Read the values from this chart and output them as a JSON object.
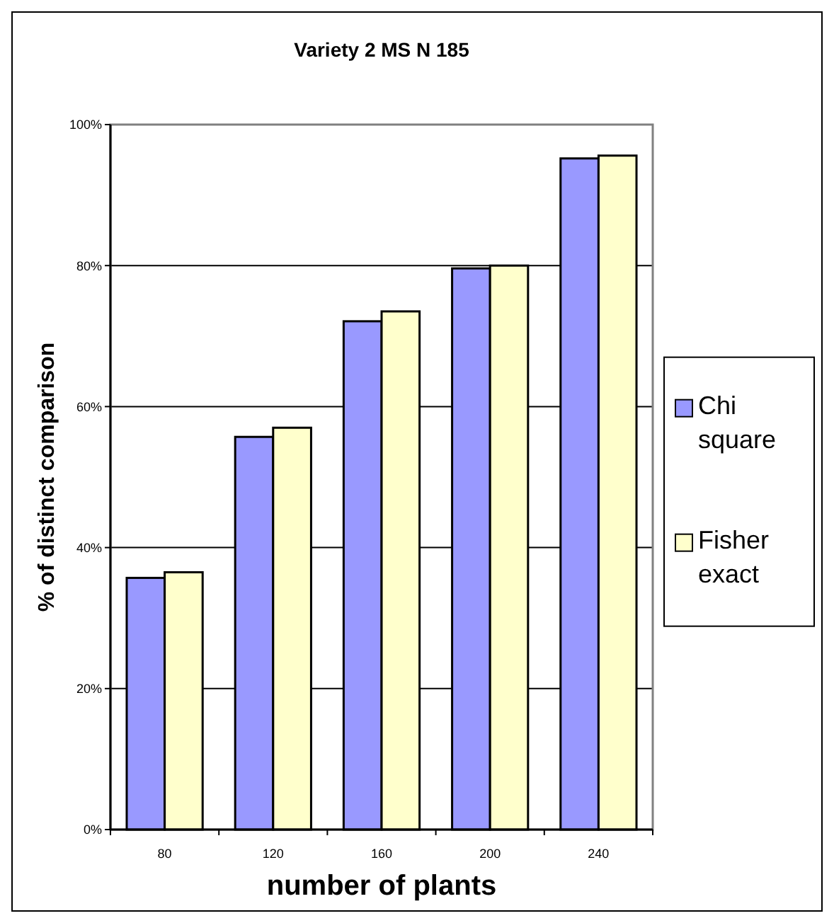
{
  "chart_data": {
    "type": "bar",
    "title": "Variety 2 MS N 185",
    "xlabel": "number of plants",
    "ylabel": "% of distinct comparison",
    "categories": [
      "80",
      "120",
      "160",
      "200",
      "240"
    ],
    "series": [
      {
        "name": "Chi square",
        "color": "#9999ff",
        "values": [
          35.7,
          55.7,
          72.1,
          79.6,
          95.2
        ]
      },
      {
        "name": "Fisher exact",
        "color": "#ffffcc",
        "values": [
          36.5,
          57,
          73.5,
          80,
          95.6
        ]
      }
    ],
    "ylim": [
      0,
      100
    ],
    "yticks": [
      {
        "value": 0,
        "label": "0%"
      },
      {
        "value": 20,
        "label": "20%"
      },
      {
        "value": 40,
        "label": "40%"
      },
      {
        "value": 60,
        "label": "60%"
      },
      {
        "value": 80,
        "label": "80%"
      },
      {
        "value": 100,
        "label": "100%"
      }
    ],
    "grid": "y",
    "legend": "right"
  }
}
